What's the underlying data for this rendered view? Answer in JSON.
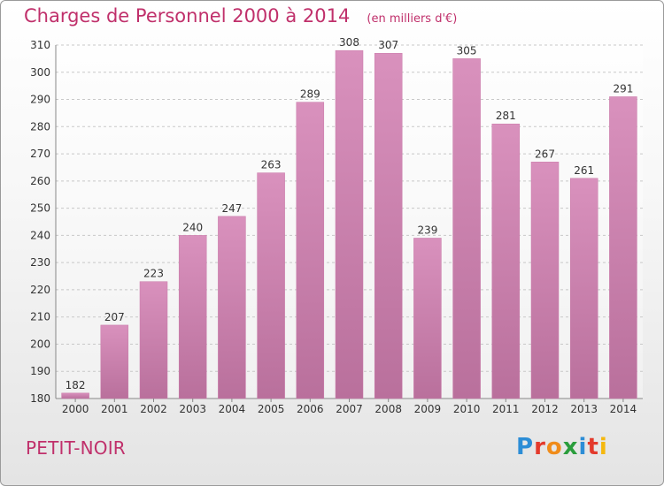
{
  "header": {
    "title": "Charges de Personnel 2000 à 2014",
    "unit": "(en milliers d'€)"
  },
  "commune": "PETIT-NOIR",
  "brand": {
    "name": "Proxiti",
    "letter_colors": [
      "#2c8dd6",
      "#e33a2c",
      "#f08c1a",
      "#2a9d3c",
      "#2c8dd6",
      "#e33a2c",
      "#f5b80f"
    ]
  },
  "colors": {
    "bar": "#d991bd",
    "bar_dark": "#b9709c",
    "text": "#c0306b"
  },
  "chart_data": {
    "type": "bar",
    "categories": [
      "2000",
      "2001",
      "2002",
      "2003",
      "2004",
      "2005",
      "2006",
      "2007",
      "2008",
      "2009",
      "2010",
      "2011",
      "2012",
      "2013",
      "2014"
    ],
    "values": [
      182,
      207,
      223,
      240,
      247,
      263,
      289,
      308,
      307,
      239,
      305,
      281,
      267,
      261,
      291
    ],
    "ylim": [
      180,
      310
    ],
    "yticks": [
      180,
      190,
      200,
      210,
      220,
      230,
      240,
      250,
      260,
      270,
      280,
      290,
      300,
      310
    ],
    "grid": true,
    "title": "Charges de Personnel 2000 à 2014",
    "xlabel": "",
    "ylabel": ""
  }
}
